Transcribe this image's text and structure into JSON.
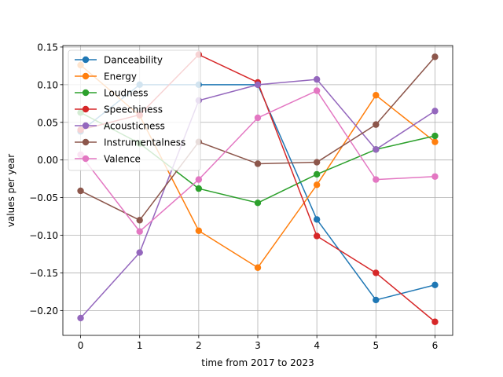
{
  "chart_data": {
    "type": "line",
    "xlabel": "time from 2017 to 2023",
    "ylabel": "values per year",
    "x": [
      0,
      1,
      2,
      3,
      4,
      5,
      6
    ],
    "xlim": [
      -0.3,
      6.3
    ],
    "ylim": [
      -0.233,
      0.152
    ],
    "xticks": [
      0,
      1,
      2,
      3,
      4,
      5,
      6
    ],
    "yticks": [
      -0.2,
      -0.15,
      -0.1,
      -0.05,
      0.0,
      0.05,
      0.1,
      0.15
    ],
    "ytick_labels": [
      "−0.20",
      "−0.15",
      "−0.10",
      "−0.05",
      "0.00",
      "0.05",
      "0.10",
      "0.15"
    ],
    "grid": true,
    "legend_position": "top-left",
    "series": [
      {
        "name": "Danceability",
        "color": "#1f77b4",
        "values": [
          0.038,
          0.1,
          0.1,
          0.1,
          -0.079,
          -0.186,
          -0.166
        ]
      },
      {
        "name": "Energy",
        "color": "#ff7f0e",
        "values": [
          0.126,
          0.059,
          -0.094,
          -0.143,
          -0.033,
          0.086,
          0.024
        ]
      },
      {
        "name": "Loudness",
        "color": "#2ca02c",
        "values": [
          0.063,
          0.022,
          -0.038,
          -0.057,
          -0.019,
          0.014,
          0.032
        ]
      },
      {
        "name": "Speechiness",
        "color": "#d62728",
        "values": [
          0.04,
          0.06,
          0.14,
          0.103,
          -0.101,
          -0.15,
          -0.215
        ]
      },
      {
        "name": "Acousticness",
        "color": "#9467bd",
        "values": [
          -0.21,
          -0.123,
          0.079,
          0.1,
          0.107,
          0.014,
          0.065
        ]
      },
      {
        "name": "Instrumentalness",
        "color": "#8c564b",
        "values": [
          -0.041,
          -0.08,
          0.024,
          -0.005,
          -0.003,
          0.047,
          0.137
        ]
      },
      {
        "name": "Valence",
        "color": "#e377c2",
        "values": [
          0.007,
          -0.095,
          -0.026,
          0.056,
          0.092,
          -0.026,
          -0.022
        ]
      }
    ]
  }
}
